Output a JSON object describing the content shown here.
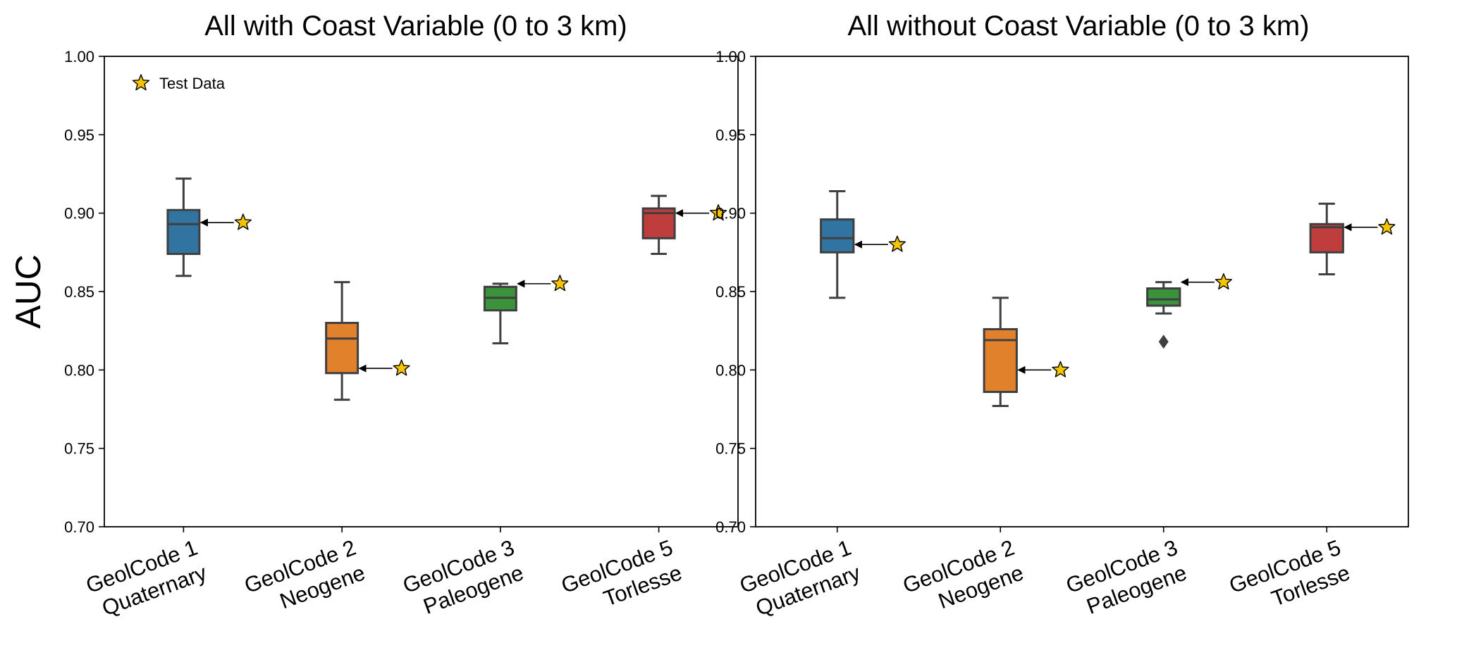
{
  "chart_data": [
    {
      "type": "box",
      "title": "All with Coast Variable (0 to 3 km)",
      "ylabel": "AUC",
      "xlabel": "",
      "ylim": [
        0.7,
        1.0
      ],
      "yticks": [
        "0.70",
        "0.75",
        "0.80",
        "0.85",
        "0.90",
        "0.95",
        "1.00"
      ],
      "categories": [
        {
          "line1": "GeolCode 1",
          "line2": "Quaternary"
        },
        {
          "line1": "GeolCode 2",
          "line2": "Neogene"
        },
        {
          "line1": "GeolCode 3",
          "line2": "Paleogene"
        },
        {
          "line1": "GeolCode 5",
          "line2": "Torlesse"
        }
      ],
      "boxes": [
        {
          "whislo": 0.86,
          "q1": 0.874,
          "median": 0.893,
          "q3": 0.902,
          "whishi": 0.922,
          "fliers": [],
          "test": 0.894
        },
        {
          "whislo": 0.781,
          "q1": 0.798,
          "median": 0.82,
          "q3": 0.83,
          "whishi": 0.856,
          "fliers": [],
          "test": 0.801
        },
        {
          "whislo": 0.817,
          "q1": 0.838,
          "median": 0.846,
          "q3": 0.853,
          "whishi": 0.855,
          "fliers": [],
          "test": 0.855
        },
        {
          "whislo": 0.874,
          "q1": 0.884,
          "median": 0.9,
          "q3": 0.903,
          "whishi": 0.911,
          "fliers": [],
          "test": 0.9
        }
      ],
      "legend": {
        "label": "Test Data",
        "position": "upper-left"
      }
    },
    {
      "type": "box",
      "title": "All without Coast Variable (0 to 3 km)",
      "ylabel": "",
      "xlabel": "",
      "ylim": [
        0.7,
        1.0
      ],
      "yticks": [
        "0.70",
        "0.75",
        "0.80",
        "0.85",
        "0.90",
        "0.95",
        "1.00"
      ],
      "categories": [
        {
          "line1": "GeolCode 1",
          "line2": "Quaternary"
        },
        {
          "line1": "GeolCode 2",
          "line2": "Neogene"
        },
        {
          "line1": "GeolCode 3",
          "line2": "Paleogene"
        },
        {
          "line1": "GeolCode 5",
          "line2": "Torlesse"
        }
      ],
      "boxes": [
        {
          "whislo": 0.846,
          "q1": 0.875,
          "median": 0.884,
          "q3": 0.896,
          "whishi": 0.914,
          "fliers": [],
          "test": 0.88
        },
        {
          "whislo": 0.777,
          "q1": 0.786,
          "median": 0.819,
          "q3": 0.826,
          "whishi": 0.846,
          "fliers": [],
          "test": 0.8
        },
        {
          "whislo": 0.836,
          "q1": 0.841,
          "median": 0.845,
          "q3": 0.852,
          "whishi": 0.856,
          "fliers": [
            0.818
          ],
          "test": 0.856
        },
        {
          "whislo": 0.861,
          "q1": 0.875,
          "median": 0.891,
          "q3": 0.893,
          "whishi": 0.906,
          "fliers": [],
          "test": 0.891
        }
      ]
    }
  ],
  "colors": {
    "boxes": [
      "#3274a1",
      "#e1812c",
      "#3a923a",
      "#c03d3e"
    ],
    "star_fill": "#f5c400",
    "star_stroke": "#000000",
    "edge": "#3f3f3f",
    "axis": "#000000"
  }
}
